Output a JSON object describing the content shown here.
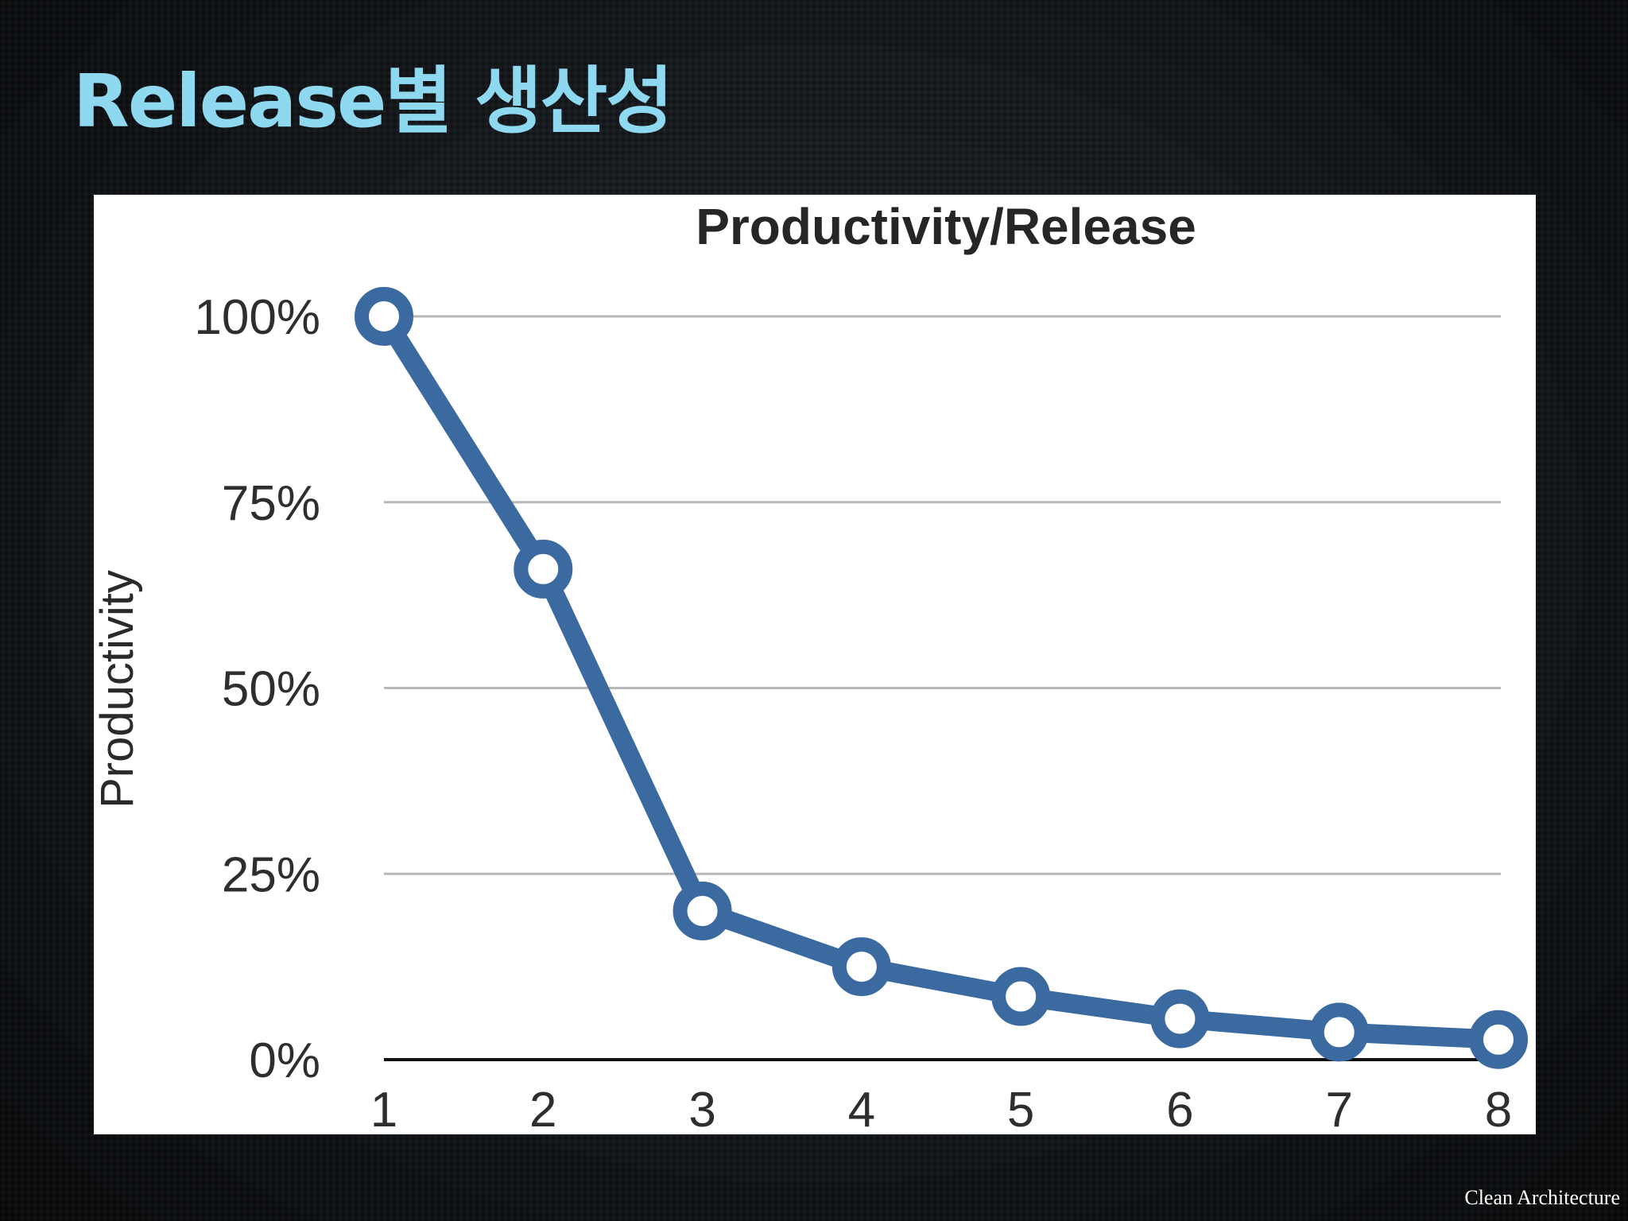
{
  "slide": {
    "title": "Release별 생산성",
    "footer": "Clean Architecture"
  },
  "chart_data": {
    "type": "line",
    "title": "Productivity/Release",
    "xlabel": "",
    "ylabel": "Productivity",
    "x": [
      1,
      2,
      3,
      4,
      5,
      6,
      7,
      8
    ],
    "x_tick_labels": [
      "1",
      "2",
      "3",
      "4",
      "5",
      "6",
      "7",
      "8"
    ],
    "series": [
      {
        "values": [
          100,
          66,
          20,
          12.5,
          8.5,
          5.5,
          3.7,
          2.7
        ]
      }
    ],
    "ylim": [
      0,
      100
    ],
    "y_ticks": [
      0,
      25,
      50,
      75,
      100
    ],
    "y_tick_labels": [
      "0%",
      "25%",
      "50%",
      "75%",
      "100%"
    ],
    "grid": true,
    "line_color": "#3a6aa0",
    "marker": "hollow-circle",
    "gridline_color": "#b8b8b8",
    "baseline_color": "#111111"
  }
}
